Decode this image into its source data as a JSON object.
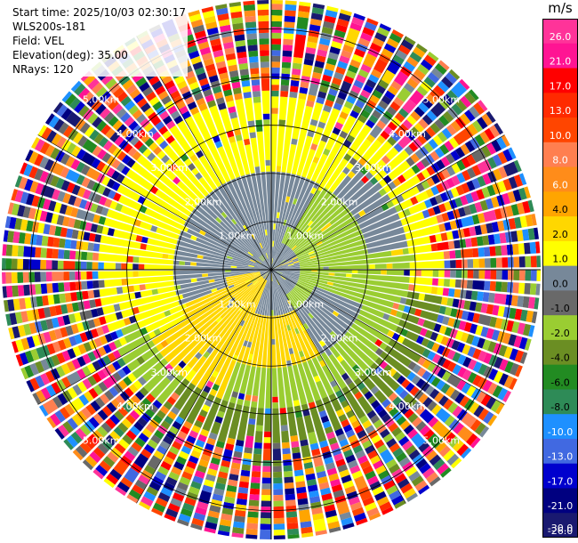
{
  "header": {
    "start_time": "Start time: 2025/10/03 02:30:17",
    "station": "WLS200s-181",
    "field": "Field: VEL",
    "elevation": "Elevation(deg): 35.00",
    "nrays": "NRays: 120"
  },
  "chart_data": {
    "type": "heatmap",
    "subtype": "polar-ppi",
    "field": "VEL",
    "units": "m/s",
    "n_rays": 120,
    "elevation_deg": 35.0,
    "range_ring_labels": [
      "1.00km",
      "2.00km",
      "3.00km",
      "4.00km",
      "5.00km"
    ],
    "range_ring_values_km": [
      1,
      2,
      3,
      4,
      5
    ],
    "colorbar": {
      "unit": "m/s",
      "ticks": [
        "26.0",
        "21.0",
        "17.0",
        "13.0",
        "10.0",
        "8.0",
        "6.0",
        "4.0",
        "2.0",
        "1.0",
        "0.0",
        "-1.0",
        "-2.0",
        "-4.0",
        "-6.0",
        "-8.0",
        "-10.0",
        "-13.0",
        "-17.0",
        "-21.0",
        "-26.0",
        "-30.0"
      ],
      "colors": [
        "#ff3399",
        "#ff1493",
        "#ff0000",
        "#ff2a00",
        "#ff4500",
        "#ff7f50",
        "#ff8c1a",
        "#ffa500",
        "#ffd700",
        "#ffff00",
        "#778899",
        "#696969",
        "#9acd32",
        "#6b8e23",
        "#228b22",
        "#2e8b57",
        "#1e90ff",
        "#4169e1",
        "#0000cd",
        "#000080",
        "#191970"
      ]
    },
    "dominant_patterns": [
      {
        "value_class": "4.0",
        "color": "#ffd700",
        "region": "south-west inner"
      },
      {
        "value_class": "2.0",
        "color": "#ffff00",
        "region": "north-west inner"
      },
      {
        "value_class": "0.0",
        "color": "#778899",
        "region": "center band"
      },
      {
        "value_class": "-2.0",
        "color": "#9acd32",
        "region": "east inner"
      },
      {
        "value_class": "-4.0",
        "color": "#6b8e23",
        "region": "south-east middle"
      }
    ]
  }
}
